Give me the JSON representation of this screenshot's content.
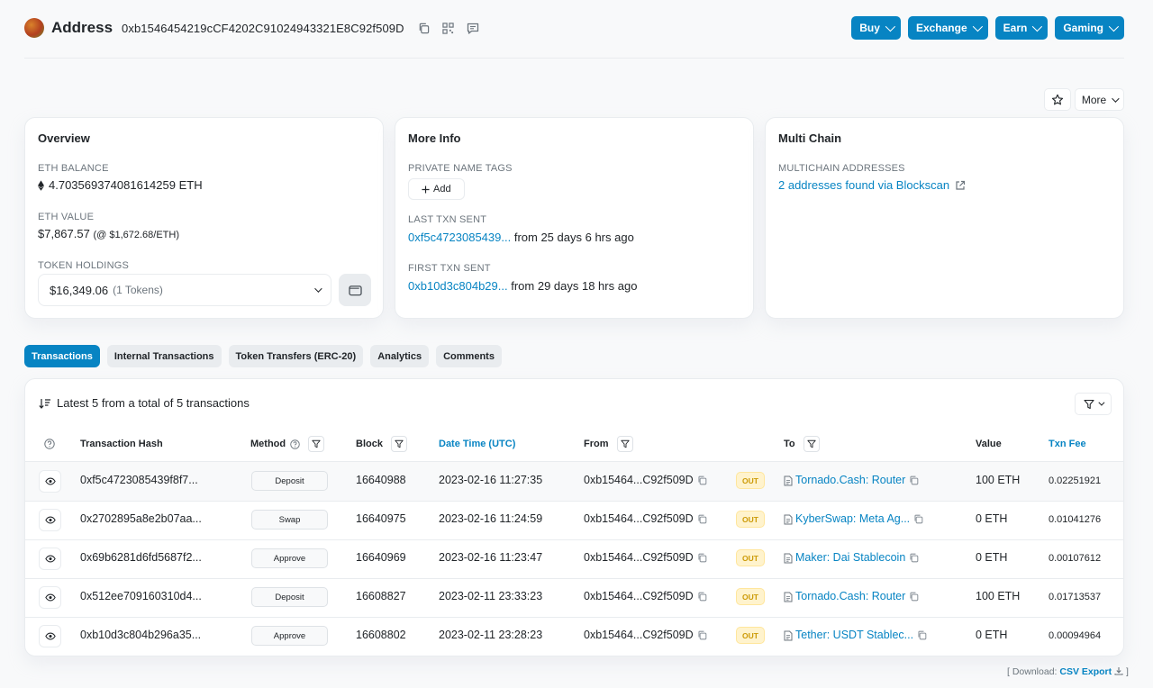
{
  "header": {
    "title": "Address",
    "address": "0xb1546454219cCF4202C91024943321E8C92f509D",
    "nav_buttons": [
      "Buy",
      "Exchange",
      "Earn",
      "Gaming"
    ],
    "more_label": "More"
  },
  "overview": {
    "title": "Overview",
    "eth_balance_label": "ETH BALANCE",
    "eth_balance": "4.703569374081614259 ETH",
    "eth_value_label": "ETH VALUE",
    "eth_value": "$7,867.57",
    "eth_price": "(@ $1,672.68/ETH)",
    "token_holdings_label": "TOKEN HOLDINGS",
    "token_value": "$16,349.06",
    "token_count": "(1 Tokens)"
  },
  "more_info": {
    "title": "More Info",
    "private_tags_label": "PRIVATE NAME TAGS",
    "add_label": "Add",
    "last_txn_label": "LAST TXN SENT",
    "last_txn_hash": "0xf5c4723085439...",
    "last_txn_time": "from 25 days 6 hrs ago",
    "first_txn_label": "FIRST TXN SENT",
    "first_txn_hash": "0xb10d3c804b29...",
    "first_txn_time": "from 29 days 18 hrs ago"
  },
  "multi_chain": {
    "title": "Multi Chain",
    "label": "MULTICHAIN ADDRESSES",
    "link": "2 addresses found via Blockscan"
  },
  "tabs": [
    "Transactions",
    "Internal Transactions",
    "Token Transfers (ERC-20)",
    "Analytics",
    "Comments"
  ],
  "transactions": {
    "summary": "Latest 5 from a total of 5 transactions",
    "columns": {
      "hash": "Transaction Hash",
      "method": "Method",
      "block": "Block",
      "date": "Date Time (UTC)",
      "from": "From",
      "to": "To",
      "value": "Value",
      "fee": "Txn Fee"
    },
    "rows": [
      {
        "hash": "0xf5c4723085439f8f7...",
        "method": "Deposit",
        "block": "16640988",
        "date": "2023-02-16 11:27:35",
        "from": "0xb15464...C92f509D",
        "dir": "OUT",
        "to": "Tornado.Cash: Router",
        "value": "100 ETH",
        "fee": "0.02251921"
      },
      {
        "hash": "0x2702895a8e2b07aa...",
        "method": "Swap",
        "block": "16640975",
        "date": "2023-02-16 11:24:59",
        "from": "0xb15464...C92f509D",
        "dir": "OUT",
        "to": "KyberSwap: Meta Ag...",
        "value": "0 ETH",
        "fee": "0.01041276"
      },
      {
        "hash": "0x69b6281d6fd5687f2...",
        "method": "Approve",
        "block": "16640969",
        "date": "2023-02-16 11:23:47",
        "from": "0xb15464...C92f509D",
        "dir": "OUT",
        "to": "Maker: Dai Stablecoin",
        "value": "0 ETH",
        "fee": "0.00107612"
      },
      {
        "hash": "0x512ee709160310d4...",
        "method": "Deposit",
        "block": "16608827",
        "date": "2023-02-11 23:33:23",
        "from": "0xb15464...C92f509D",
        "dir": "OUT",
        "to": "Tornado.Cash: Router",
        "value": "100 ETH",
        "fee": "0.01713537"
      },
      {
        "hash": "0xb10d3c804b296a35...",
        "method": "Approve",
        "block": "16608802",
        "date": "2023-02-11 23:28:23",
        "from": "0xb15464...C92f509D",
        "dir": "OUT",
        "to": "Tether: USDT Stablec...",
        "value": "0 ETH",
        "fee": "0.00094964"
      }
    ]
  },
  "download": {
    "prefix": "[ Download:",
    "link": "CSV Export",
    "suffix": "]"
  }
}
